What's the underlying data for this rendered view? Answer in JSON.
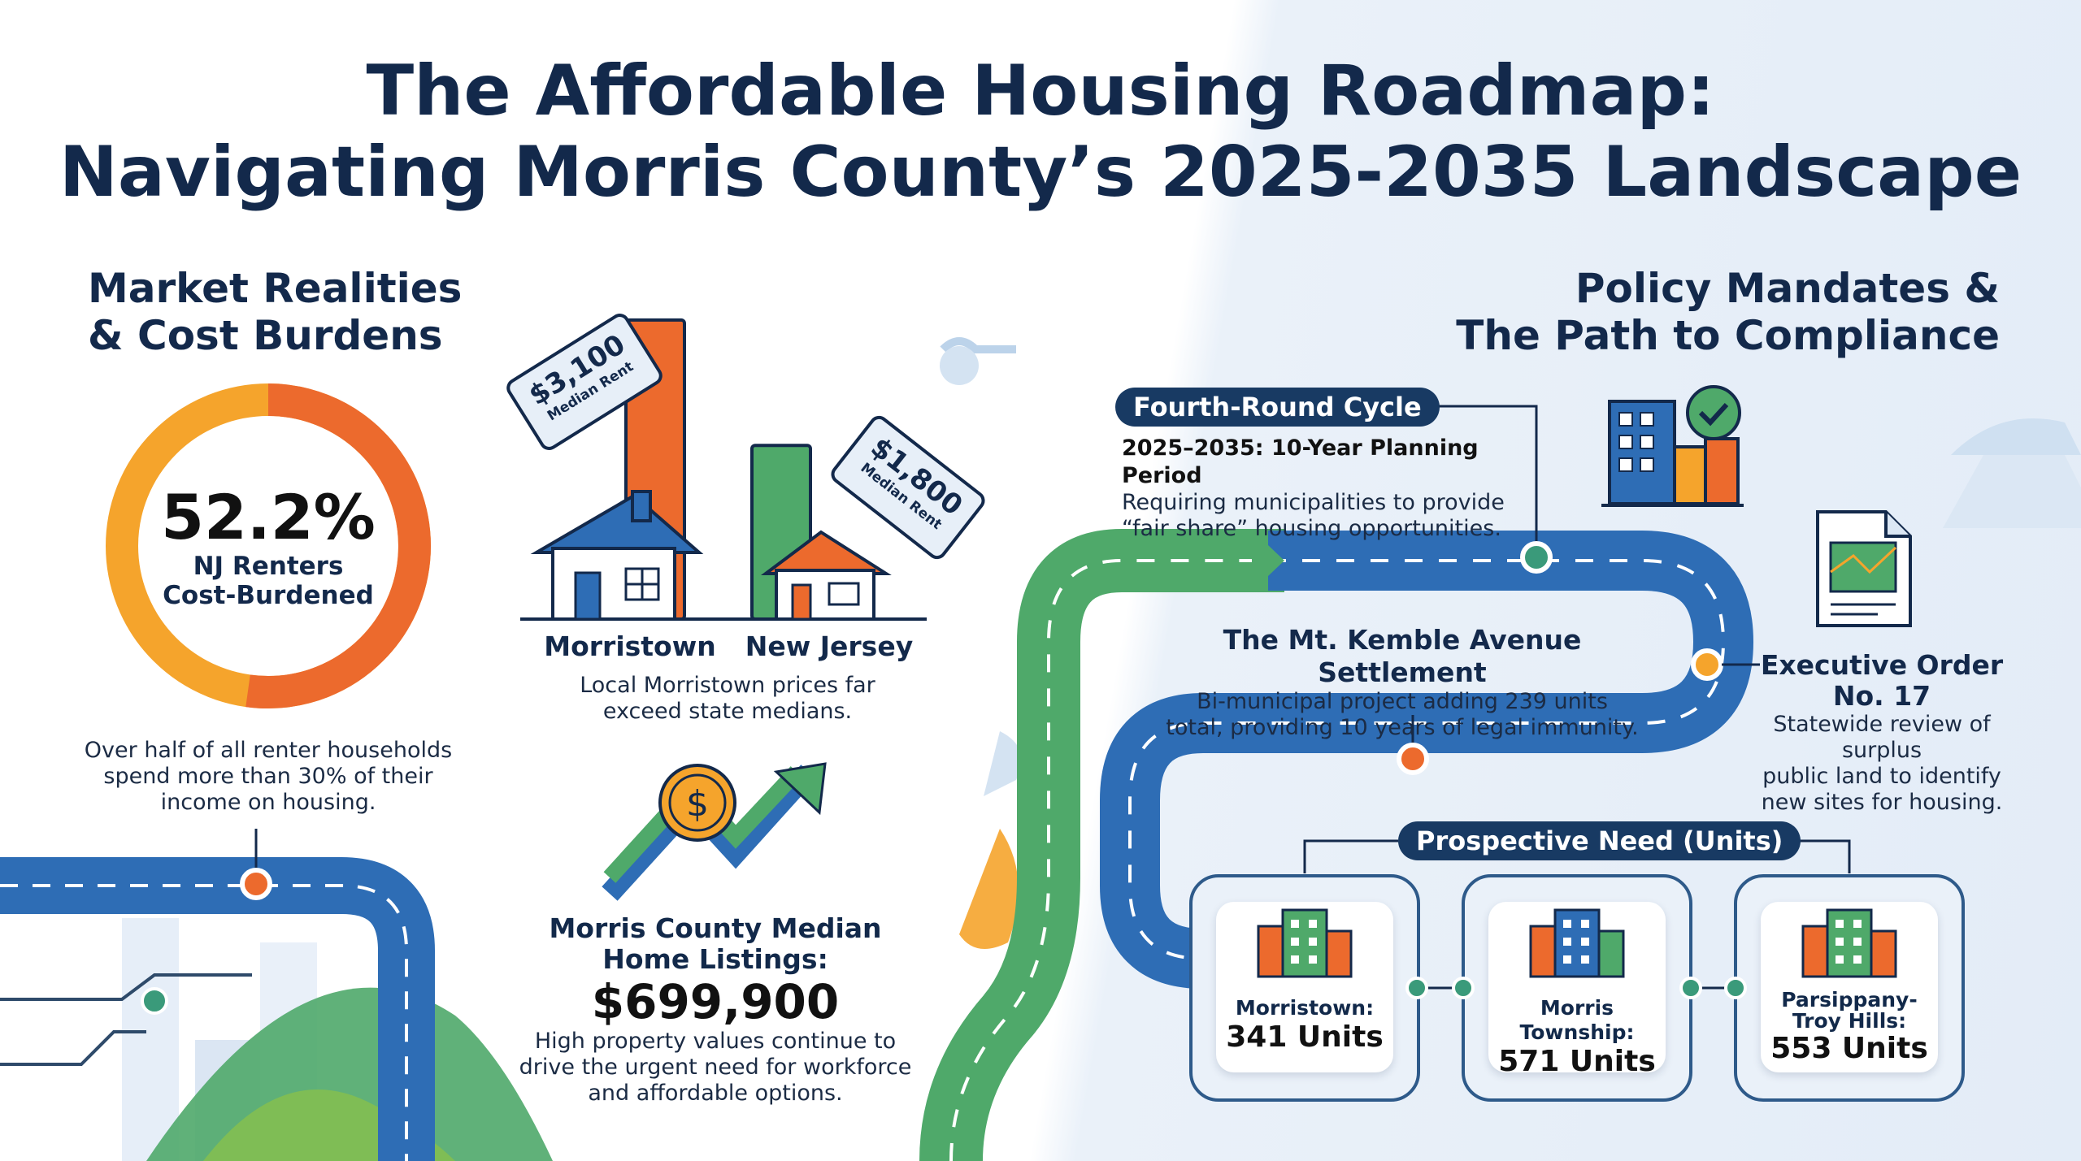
{
  "title": {
    "line1": "The Affordable Housing Roadmap:",
    "line2": "Navigating Morris County’s 2025-2035 Landscape"
  },
  "left_section": {
    "heading_line1": "Market Realities",
    "heading_line2": "& Cost Burdens",
    "donut": {
      "value_label": "52.2%",
      "caption_line1": "NJ Renters",
      "caption_line2": "Cost-Burdened",
      "percent": 52.2,
      "color_burdened": "#ec6a2d",
      "color_other": "#f5a42c"
    },
    "donut_note": [
      "Over half of all renter households",
      "spend more than 30% of their",
      "income on housing."
    ]
  },
  "rent_comparison": {
    "morristown": {
      "label": "Morristown",
      "tag_amount": "$3,100",
      "tag_sub": "Median Rent",
      "rent": 3100,
      "color": "#ec6a2d"
    },
    "new_jersey": {
      "label": "New Jersey",
      "tag_amount": "$1,800",
      "tag_sub": "Median Rent",
      "rent": 1800,
      "color": "#4fa96a"
    },
    "note": [
      "Local Morristown prices far",
      "exceed state medians."
    ]
  },
  "home_listings": {
    "heading_line1": "Morris County Median",
    "heading_line2": "Home Listings:",
    "value": "$699,900",
    "note": [
      "High property values continue to",
      "drive the urgent need for workforce",
      "and affordable options."
    ],
    "icon": "dollar-coin-icon"
  },
  "right_section": {
    "heading_line1": "Policy Mandates &",
    "heading_line2": "The Path to Compliance",
    "cycle": {
      "pill": "Fourth-Round Cycle",
      "bold_line": "2025–2035: 10-Year Planning Period",
      "text": [
        "Requiring municipalities to provide",
        "“fair share” housing opportunities."
      ]
    },
    "settlement": {
      "title": "The Mt. Kemble Avenue Settlement",
      "text": [
        "Bi-municipal project adding 239 units",
        "total, providing 10 years of legal immunity."
      ]
    },
    "executive_order": {
      "title_line1": "Executive Order",
      "title_line2": "No. 17",
      "text": [
        "Statewide review of surplus",
        "public land to identify",
        "new sites for housing."
      ]
    },
    "prospective_need": {
      "pill": "Prospective Need (Units)",
      "cards": [
        {
          "lines": [
            "Morristown:"
          ],
          "units_label": "341 Units",
          "units": 341
        },
        {
          "lines": [
            "Morris Township:"
          ],
          "units_label": "571 Units",
          "units": 571
        },
        {
          "lines": [
            "Parsippany-",
            "Troy Hills:"
          ],
          "units_label": "553 Units",
          "units": 553
        }
      ]
    }
  },
  "colors": {
    "navy": "#13294b",
    "road_blue": "#2e6db5",
    "road_green": "#4fa96a",
    "orange": "#ec6a2d",
    "amber": "#f5a42c",
    "teal_dot": "#3a9a7a"
  }
}
